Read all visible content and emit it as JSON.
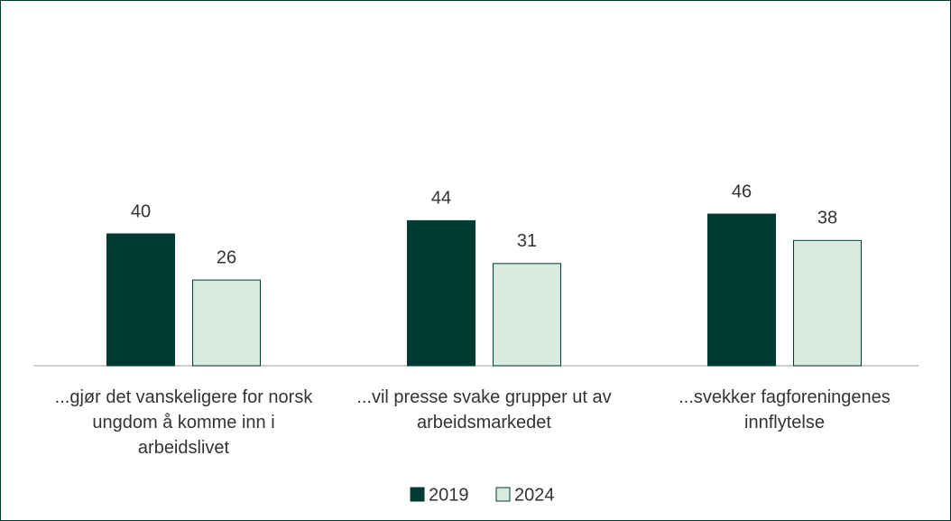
{
  "chart_data": {
    "type": "bar",
    "categories": [
      "...gjør det vanskeligere for norsk ungdom å komme inn i arbeidslivet",
      "...vil presse svake grupper ut av arbeidsmarkedet",
      "...svekker fagforeningenes innflytelse"
    ],
    "series": [
      {
        "name": "2019",
        "color": "#003b33",
        "values": [
          40,
          44,
          46
        ]
      },
      {
        "name": "2024",
        "color": "#d7eadd",
        "values": [
          26,
          31,
          38
        ]
      }
    ],
    "legend": "bottom"
  }
}
